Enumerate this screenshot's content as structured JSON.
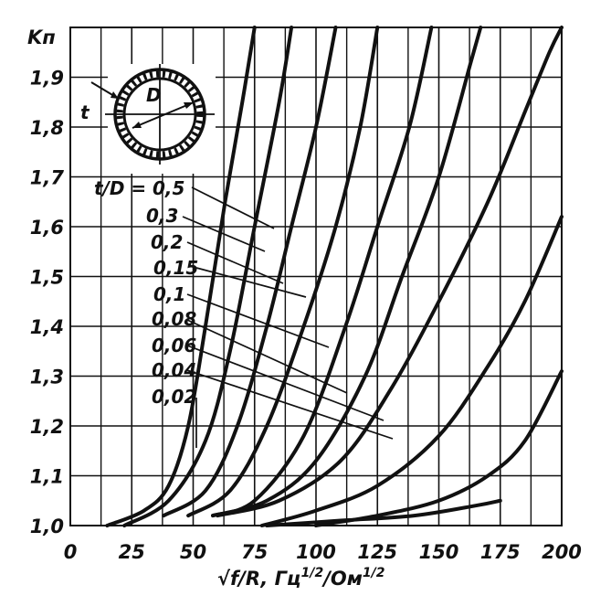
{
  "chart_data": {
    "type": "line",
    "ylabel": "Kп",
    "xlabel": "√f/R, Гц^1/2/Ом^1/2",
    "xlabel_parts": {
      "main": "√f/R, Гц",
      "sup1": "1/2",
      "mid": "/Ом",
      "sup2": "1/2"
    },
    "xlim": [
      0,
      200
    ],
    "ylim": [
      1.0,
      2.0
    ],
    "x_ticks": [
      "0",
      "25",
      "50",
      "75",
      "100",
      "125",
      "150",
      "175",
      "200"
    ],
    "y_ticks": [
      "1,0",
      "1,1",
      "1,2",
      "1,3",
      "1,4",
      "1,5",
      "1,6",
      "1,7",
      "1,8",
      "1,9"
    ],
    "grid": true,
    "legend_prefix": "t/D =",
    "series": [
      {
        "name": "0,5",
        "points": [
          [
            15,
            1.0
          ],
          [
            30,
            1.03
          ],
          [
            40,
            1.08
          ],
          [
            48,
            1.2
          ],
          [
            55,
            1.4
          ],
          [
            63,
            1.65
          ],
          [
            70,
            1.85
          ],
          [
            75,
            2.0
          ]
        ]
      },
      {
        "name": "0,3",
        "points": [
          [
            22,
            1.0
          ],
          [
            40,
            1.05
          ],
          [
            55,
            1.17
          ],
          [
            65,
            1.35
          ],
          [
            75,
            1.6
          ],
          [
            85,
            1.85
          ],
          [
            90,
            2.0
          ]
        ]
      },
      {
        "name": "0,2",
        "points": [
          [
            38,
            1.02
          ],
          [
            55,
            1.07
          ],
          [
            68,
            1.2
          ],
          [
            80,
            1.4
          ],
          [
            90,
            1.6
          ],
          [
            100,
            1.8
          ],
          [
            108,
            2.0
          ]
        ]
      },
      {
        "name": "0,15",
        "points": [
          [
            48,
            1.02
          ],
          [
            65,
            1.07
          ],
          [
            80,
            1.2
          ],
          [
            95,
            1.4
          ],
          [
            108,
            1.6
          ],
          [
            118,
            1.8
          ],
          [
            125,
            2.0
          ]
        ]
      },
      {
        "name": "0,1",
        "points": [
          [
            58,
            1.02
          ],
          [
            75,
            1.05
          ],
          [
            95,
            1.18
          ],
          [
            112,
            1.4
          ],
          [
            125,
            1.6
          ],
          [
            138,
            1.8
          ],
          [
            147,
            2.0
          ]
        ]
      },
      {
        "name": "0,08",
        "points": [
          [
            58,
            1.02
          ],
          [
            80,
            1.05
          ],
          [
            100,
            1.13
          ],
          [
            120,
            1.3
          ],
          [
            135,
            1.5
          ],
          [
            150,
            1.7
          ],
          [
            163,
            1.93
          ],
          [
            167,
            2.0
          ]
        ]
      },
      {
        "name": "0,06",
        "points": [
          [
            60,
            1.02
          ],
          [
            85,
            1.05
          ],
          [
            110,
            1.13
          ],
          [
            130,
            1.27
          ],
          [
            150,
            1.45
          ],
          [
            170,
            1.65
          ],
          [
            185,
            1.83
          ],
          [
            195,
            1.95
          ],
          [
            200,
            2.0
          ]
        ]
      },
      {
        "name": "0,04",
        "points": [
          [
            78,
            1.0
          ],
          [
            100,
            1.03
          ],
          [
            125,
            1.08
          ],
          [
            150,
            1.18
          ],
          [
            170,
            1.32
          ],
          [
            185,
            1.45
          ],
          [
            200,
            1.62
          ]
        ]
      },
      {
        "name": "0,02",
        "points": [
          [
            100,
            1.0
          ],
          [
            125,
            1.02
          ],
          [
            150,
            1.05
          ],
          [
            170,
            1.1
          ],
          [
            185,
            1.17
          ],
          [
            200,
            1.31
          ]
        ]
      },
      {
        "name": "",
        "points": [
          [
            80,
            1.0
          ],
          [
            110,
            1.01
          ],
          [
            140,
            1.02
          ],
          [
            165,
            1.04
          ],
          [
            175,
            1.05
          ]
        ]
      }
    ]
  }
}
